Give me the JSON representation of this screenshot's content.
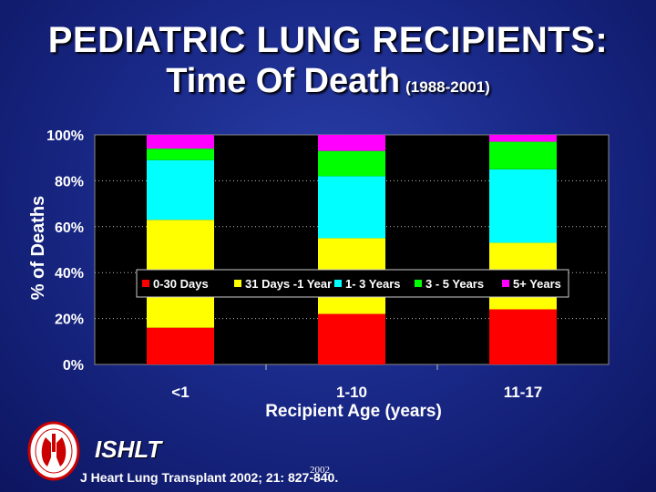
{
  "title": {
    "line1": "PEDIATRIC LUNG RECIPIENTS:",
    "line2": "Time Of Death",
    "line2_sub": "(1988-2001)"
  },
  "chart_data": {
    "type": "bar",
    "stacked": true,
    "categories": [
      "<1",
      "1-10",
      "11-17"
    ],
    "series": [
      {
        "name": "0-30 Days",
        "color": "#ff0000",
        "values": [
          16,
          22,
          24
        ]
      },
      {
        "name": "31 Days -1 Year",
        "color": "#ffff00",
        "values": [
          47,
          33,
          29
        ]
      },
      {
        "name": "1- 3 Years",
        "color": "#00ffff",
        "values": [
          26,
          27,
          32
        ]
      },
      {
        "name": "3 - 5 Years",
        "color": "#00ff00",
        "values": [
          5,
          11,
          12
        ]
      },
      {
        "name": "5+ Years",
        "color": "#ff00ff",
        "values": [
          6,
          7,
          3
        ]
      }
    ],
    "yticks": [
      "0%",
      "20%",
      "40%",
      "60%",
      "80%",
      "100%"
    ],
    "ylim": [
      0,
      100
    ],
    "ylabel": "% of Deaths",
    "xlabel": "Recipient Age (years)",
    "legend_position": "center",
    "grid": true
  },
  "footer": {
    "brand": "ISHLT",
    "year": "2002",
    "citation": "J Heart Lung Transplant 2002; 21: 827-840."
  },
  "colors": {
    "background": "#1a2a8a",
    "plot_background": "#000000"
  }
}
